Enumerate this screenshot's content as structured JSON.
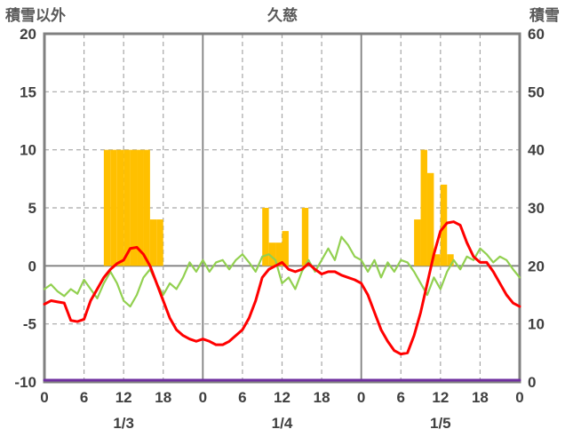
{
  "header": {
    "left_axis_title": "積雪以外",
    "title": "久慈",
    "right_axis_title": "積雪"
  },
  "chart_data": {
    "type": "bar+line",
    "title": "久慈",
    "x_unit": "hour",
    "x_range": [
      0,
      72
    ],
    "grid": true,
    "colors": {
      "grid": "#A6A6A6",
      "axis": "#808080",
      "text": "#404040"
    },
    "left_axis": {
      "title": "積雪以外",
      "min": -10,
      "max": 20,
      "ticks": [
        20,
        15,
        10,
        5,
        0,
        -5,
        -10
      ]
    },
    "right_axis": {
      "title": "積雪",
      "min": 0,
      "max": 60,
      "ticks": [
        60,
        50,
        40,
        30,
        20,
        10,
        0
      ]
    },
    "x_ticks": [
      {
        "hour": 0,
        "label": "0"
      },
      {
        "hour": 6,
        "label": "6"
      },
      {
        "hour": 12,
        "label": "12"
      },
      {
        "hour": 18,
        "label": "18"
      },
      {
        "hour": 24,
        "label": "0"
      },
      {
        "hour": 30,
        "label": "6"
      },
      {
        "hour": 36,
        "label": "12"
      },
      {
        "hour": 42,
        "label": "18"
      },
      {
        "hour": 48,
        "label": "0"
      },
      {
        "hour": 54,
        "label": "6"
      },
      {
        "hour": 60,
        "label": "12"
      },
      {
        "hour": 66,
        "label": "18"
      },
      {
        "hour": 72,
        "label": "0"
      }
    ],
    "day_labels": [
      {
        "hour": 12,
        "label": "1/3"
      },
      {
        "hour": 36,
        "label": "1/4"
      },
      {
        "hour": 60,
        "label": "1/5"
      }
    ],
    "series": [
      {
        "name": "orange-bars",
        "type": "bar",
        "axis": "left",
        "color": "#FFC000",
        "values": [
          0,
          0,
          0,
          0,
          0,
          0,
          0,
          0,
          0,
          10,
          10,
          10,
          10,
          10,
          10,
          10,
          4,
          4,
          0,
          0,
          0,
          0,
          0,
          0,
          0,
          0,
          0,
          0,
          0,
          0,
          0,
          0,
          0,
          5,
          2,
          2,
          3,
          0,
          0,
          5,
          0,
          0,
          0,
          0,
          0,
          0,
          0,
          0,
          0,
          0,
          0,
          0,
          0,
          0,
          0,
          0,
          4,
          10,
          8,
          1,
          7,
          1,
          0,
          0,
          0,
          0,
          0,
          0,
          0,
          0,
          0,
          0
        ]
      },
      {
        "name": "green-line",
        "type": "line",
        "axis": "left",
        "color": "#92D050",
        "width": 2.2,
        "values": [
          -2.0,
          -1.6,
          -2.2,
          -2.6,
          -2.0,
          -2.4,
          -1.2,
          -2.0,
          -2.8,
          -1.5,
          -0.5,
          -1.5,
          -3.0,
          -3.5,
          -2.5,
          -1.0,
          -0.3,
          -1.5,
          -2.5,
          -1.5,
          -2.0,
          -1.0,
          0.3,
          -0.5,
          0.5,
          -0.5,
          0.3,
          0.5,
          -0.3,
          0.5,
          1.0,
          0.3,
          -0.5,
          0.8,
          1.0,
          0.5,
          -1.5,
          -1.0,
          -2.0,
          -0.5,
          0.5,
          -0.5,
          0.5,
          1.5,
          0.5,
          2.5,
          1.8,
          0.8,
          0.5,
          -0.5,
          0.5,
          -1.0,
          0.3,
          -0.5,
          0.5,
          0.3,
          -0.5,
          -1.5,
          -2.5,
          -1.0,
          -2.0,
          -0.5,
          0.5,
          -0.3,
          0.8,
          0.5,
          1.5,
          1.0,
          0.3,
          0.8,
          0.5,
          -0.3,
          -1.0
        ]
      },
      {
        "name": "red-line",
        "type": "line",
        "axis": "left",
        "color": "#FF0000",
        "width": 3,
        "values": [
          -3.3,
          -3.0,
          -3.1,
          -3.2,
          -4.7,
          -4.8,
          -4.6,
          -3.0,
          -2.0,
          -1.0,
          -0.3,
          0.2,
          0.5,
          1.5,
          1.6,
          1.0,
          0.0,
          -1.5,
          -3.0,
          -4.5,
          -5.5,
          -6.0,
          -6.3,
          -6.5,
          -6.3,
          -6.5,
          -6.8,
          -6.8,
          -6.5,
          -6.0,
          -5.5,
          -4.5,
          -3.0,
          -1.0,
          -0.3,
          0.0,
          0.3,
          -0.3,
          -0.5,
          -0.3,
          0.2,
          -0.3,
          -0.7,
          -0.5,
          -0.5,
          -0.8,
          -1.0,
          -1.2,
          -1.5,
          -2.5,
          -4.0,
          -5.5,
          -6.5,
          -7.3,
          -7.6,
          -7.5,
          -6.0,
          -4.0,
          -1.5,
          1.0,
          3.0,
          3.7,
          3.8,
          3.5,
          2.0,
          0.8,
          0.3,
          0.3,
          -0.5,
          -1.5,
          -2.5,
          -3.2,
          -3.5
        ]
      },
      {
        "name": "purple-line",
        "type": "line",
        "axis": "right",
        "color": "#7030A0",
        "width": 3,
        "constant": 0,
        "y_offset": -2
      }
    ]
  }
}
